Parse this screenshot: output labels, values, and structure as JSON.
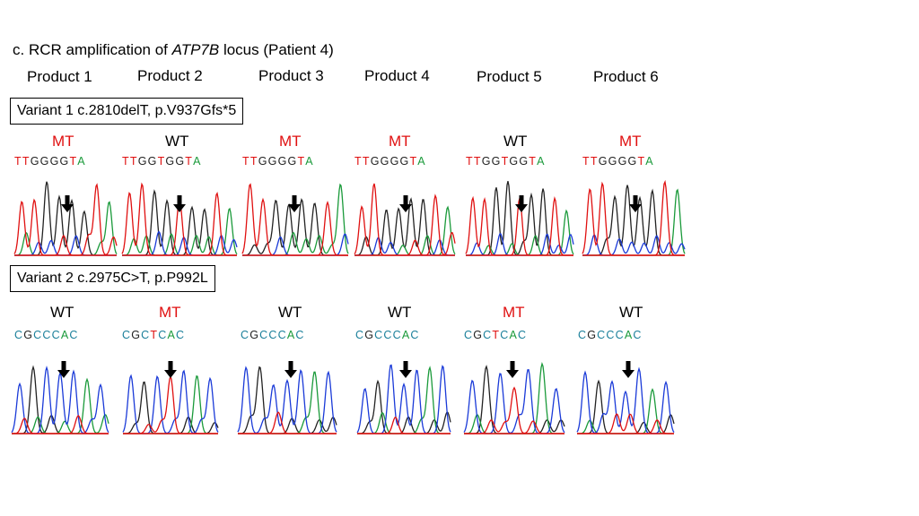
{
  "title": {
    "prefix": "c. RCR amplification of ",
    "gene": "ATP7B",
    "suffix": " locus (Patient 4)"
  },
  "products": [
    "Product 1",
    "Product 2",
    "Product 3",
    "Product 4",
    "Product 5",
    "Product 6"
  ],
  "variants": [
    {
      "label": "Variant 1 c.2810delT, p.V937Gfs*5",
      "panels": [
        {
          "status": "MT",
          "seq": "TTGGGGTA"
        },
        {
          "status": "WT",
          "seq": "TTGGTGGTA"
        },
        {
          "status": "MT",
          "seq": "TTGGGGTA"
        },
        {
          "status": "MT",
          "seq": "TTGGGGTA"
        },
        {
          "status": "WT",
          "seq": "TTGGTGGTA"
        },
        {
          "status": "MT",
          "seq": "TTGGGGTA"
        }
      ]
    },
    {
      "label": "Variant 2 c.2975C>T, p.P992L",
      "panels": [
        {
          "status": "WT",
          "seq": "CGCCCAC"
        },
        {
          "status": "MT",
          "seq": "CGCTCAC"
        },
        {
          "status": "WT",
          "seq": "CGCCCAC"
        },
        {
          "status": "WT",
          "seq": "CGCCCAC"
        },
        {
          "status": "MT",
          "seq": "CGCTCAC"
        },
        {
          "status": "WT",
          "seq": "CGCCCAC"
        }
      ]
    }
  ],
  "colors": {
    "A": "#1a9a3a",
    "C": "#1a3ad8",
    "G": "#222222",
    "T": "#e01010",
    "C_label": "#1a7f9a",
    "mt": "#e01010",
    "wt": "#000000"
  }
}
